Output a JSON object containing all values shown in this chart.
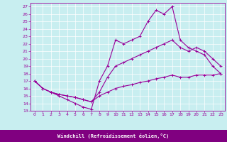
{
  "xlabel": "Windchill (Refroidissement éolien,°C)",
  "bg_color": "#c8eef0",
  "line_color": "#990099",
  "label_bar_color": "#800080",
  "xlim": [
    -0.5,
    23.5
  ],
  "ylim": [
    13,
    27.5
  ],
  "xticks": [
    0,
    1,
    2,
    3,
    4,
    5,
    6,
    7,
    8,
    9,
    10,
    11,
    12,
    13,
    14,
    15,
    16,
    17,
    18,
    19,
    20,
    21,
    22,
    23
  ],
  "yticks": [
    13,
    14,
    15,
    16,
    17,
    18,
    19,
    20,
    21,
    22,
    23,
    24,
    25,
    26,
    27
  ],
  "line1_x": [
    0,
    1,
    2,
    3,
    4,
    5,
    6,
    7,
    8,
    9,
    10,
    11,
    12,
    13,
    14,
    15,
    16,
    17,
    18,
    19,
    20,
    21,
    22,
    23
  ],
  "line1_y": [
    17.0,
    16.0,
    15.5,
    15.0,
    14.5,
    14.0,
    13.5,
    13.2,
    17.0,
    19.0,
    22.5,
    22.0,
    22.5,
    23.0,
    25.0,
    26.5,
    26.0,
    27.0,
    22.5,
    21.5,
    21.0,
    20.5,
    19.0,
    18.0
  ],
  "line2_x": [
    0,
    1,
    2,
    3,
    4,
    5,
    6,
    7,
    8,
    9,
    10,
    11,
    12,
    13,
    14,
    15,
    16,
    17,
    18,
    19,
    20,
    21,
    22,
    23
  ],
  "line2_y": [
    17.0,
    16.0,
    15.5,
    15.2,
    15.0,
    14.8,
    14.5,
    14.2,
    15.5,
    17.5,
    19.0,
    19.5,
    20.0,
    20.5,
    21.0,
    21.5,
    22.0,
    22.5,
    21.5,
    21.0,
    21.5,
    21.0,
    20.0,
    19.0
  ],
  "line3_x": [
    0,
    1,
    2,
    3,
    4,
    5,
    6,
    7,
    8,
    9,
    10,
    11,
    12,
    13,
    14,
    15,
    16,
    17,
    18,
    19,
    20,
    21,
    22,
    23
  ],
  "line3_y": [
    17.0,
    16.0,
    15.5,
    15.2,
    15.0,
    14.8,
    14.5,
    14.2,
    15.0,
    15.5,
    16.0,
    16.3,
    16.5,
    16.8,
    17.0,
    17.3,
    17.5,
    17.8,
    17.5,
    17.5,
    17.8,
    17.8,
    17.8,
    18.0
  ]
}
